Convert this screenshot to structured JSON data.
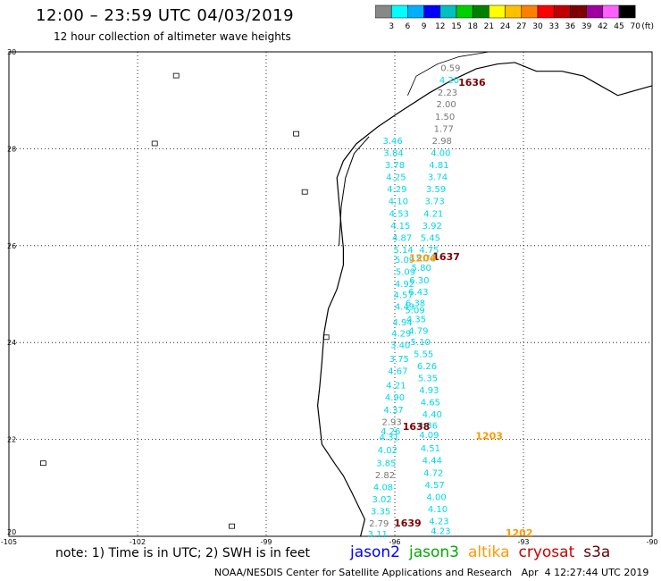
{
  "header": {
    "title": "12:00 – 23:59 UTC 04/03/2019",
    "subtitle": "12 hour collection of altimeter wave heights"
  },
  "scale": {
    "labels": [
      "3",
      "6",
      "9",
      "12",
      "15",
      "18",
      "21",
      "24",
      "27",
      "30",
      "33",
      "36",
      "39",
      "42",
      "45",
      "70"
    ],
    "colors": [
      "#888888",
      "#00ffff",
      "#00b0ff",
      "#0000ff",
      "#00c0c0",
      "#00d000",
      "#008000",
      "#ffff00",
      "#ffc000",
      "#ff8000",
      "#ff0000",
      "#c00000",
      "#800000",
      "#a000a0",
      "#ff60ff",
      "#000000"
    ],
    "unit": "(ft)"
  },
  "axes": {
    "lat_labels": [
      "30",
      "28",
      "26",
      "24",
      "22",
      "20"
    ],
    "lon_labels": [
      "-105",
      "-102",
      "-99",
      "-96",
      "-93",
      "-90"
    ]
  },
  "satellites": [
    {
      "name": "jason2",
      "color": "#0000ff"
    },
    {
      "name": "jason3",
      "color": "#00aa00"
    },
    {
      "name": "altika",
      "color": "#ff9900"
    },
    {
      "name": "cryosat",
      "color": "#cc0000"
    },
    {
      "name": "s3a",
      "color": "#660000"
    }
  ],
  "note": "note: 1) Time is in UTC; 2) SWH is in feet",
  "footer": "NOAA/NESDIS Center for Satellite Applications and Research   Apr  4 12:27:44 UTC 2019",
  "labels": {
    "colors": {
      "gray": "#777777",
      "cyan": "#00d8e8",
      "orange": "#ff9900",
      "darkred": "#7a0000"
    },
    "track_ticks": [
      {
        "t": "1636",
        "c": "darkred",
        "lon": -94.2,
        "lat": 29.3
      },
      {
        "t": "1637",
        "c": "darkred",
        "lon": -94.8,
        "lat": 25.7
      },
      {
        "t": "1204",
        "c": "orange",
        "lon": -95.35,
        "lat": 25.67
      },
      {
        "t": "1638",
        "c": "darkred",
        "lon": -95.5,
        "lat": 22.2
      },
      {
        "t": "1203",
        "c": "orange",
        "lon": -93.8,
        "lat": 22.0
      },
      {
        "t": "1639",
        "c": "darkred",
        "lon": -95.7,
        "lat": 20.2
      },
      {
        "t": "1202",
        "c": "orange",
        "lon": -93.1,
        "lat": 20.0
      }
    ],
    "track_a": [
      {
        "t": "0.59",
        "c": "gray",
        "lon": -94.7,
        "lat": 29.6
      },
      {
        "t": "4.20",
        "c": "cyan",
        "lon": -94.73,
        "lat": 29.35
      },
      {
        "t": "2.23",
        "c": "gray",
        "lon": -94.77,
        "lat": 29.1
      },
      {
        "t": "2.00",
        "c": "gray",
        "lon": -94.8,
        "lat": 28.86
      },
      {
        "t": "1.50",
        "c": "gray",
        "lon": -94.83,
        "lat": 28.6
      },
      {
        "t": "1.77",
        "c": "gray",
        "lon": -94.86,
        "lat": 28.35
      },
      {
        "t": "2.98",
        "c": "gray",
        "lon": -94.9,
        "lat": 28.1
      },
      {
        "t": "4.00",
        "c": "cyan",
        "lon": -94.93,
        "lat": 27.85
      },
      {
        "t": "4.81",
        "c": "cyan",
        "lon": -94.97,
        "lat": 27.6
      },
      {
        "t": "3.74",
        "c": "cyan",
        "lon": -95.0,
        "lat": 27.35
      },
      {
        "t": "3.59",
        "c": "cyan",
        "lon": -95.04,
        "lat": 27.1
      },
      {
        "t": "3.73",
        "c": "cyan",
        "lon": -95.07,
        "lat": 26.85
      },
      {
        "t": "4.21",
        "c": "cyan",
        "lon": -95.1,
        "lat": 26.6
      },
      {
        "t": "3.92",
        "c": "cyan",
        "lon": -95.13,
        "lat": 26.35
      },
      {
        "t": "5.45",
        "c": "cyan",
        "lon": -95.17,
        "lat": 26.1
      },
      {
        "t": "4.75",
        "c": "cyan",
        "lon": -95.2,
        "lat": 25.85
      },
      {
        "t": "5.78",
        "c": "cyan",
        "lon": -95.27,
        "lat": 25.67
      },
      {
        "t": "5.80",
        "c": "cyan",
        "lon": -95.38,
        "lat": 25.48
      },
      {
        "t": "6.30",
        "c": "cyan",
        "lon": -95.43,
        "lat": 25.22
      },
      {
        "t": "6.43",
        "c": "cyan",
        "lon": -95.45,
        "lat": 24.98
      },
      {
        "t": "6.38",
        "c": "cyan",
        "lon": -95.52,
        "lat": 24.75
      },
      {
        "t": "5.09",
        "c": "cyan",
        "lon": -95.53,
        "lat": 24.6
      },
      {
        "t": "4.35",
        "c": "cyan",
        "lon": -95.5,
        "lat": 24.42
      },
      {
        "t": "4.79",
        "c": "cyan",
        "lon": -95.45,
        "lat": 24.18
      },
      {
        "t": "5.10",
        "c": "cyan",
        "lon": -95.4,
        "lat": 23.95
      },
      {
        "t": "5.55",
        "c": "cyan",
        "lon": -95.33,
        "lat": 23.7
      },
      {
        "t": "6.26",
        "c": "cyan",
        "lon": -95.25,
        "lat": 23.45
      },
      {
        "t": "5.35",
        "c": "cyan",
        "lon": -95.23,
        "lat": 23.2
      },
      {
        "t": "4.93",
        "c": "cyan",
        "lon": -95.2,
        "lat": 22.95
      },
      {
        "t": "4.65",
        "c": "cyan",
        "lon": -95.17,
        "lat": 22.7
      },
      {
        "t": "4.40",
        "c": "cyan",
        "lon": -95.13,
        "lat": 22.45
      },
      {
        "t": "4.36",
        "c": "cyan",
        "lon": -95.23,
        "lat": 22.22
      },
      {
        "t": "4.09",
        "c": "cyan",
        "lon": -95.2,
        "lat": 22.03
      },
      {
        "t": "4.51",
        "c": "cyan",
        "lon": -95.17,
        "lat": 21.75
      },
      {
        "t": "4.44",
        "c": "cyan",
        "lon": -95.13,
        "lat": 21.5
      },
      {
        "t": "4.72",
        "c": "cyan",
        "lon": -95.1,
        "lat": 21.25
      },
      {
        "t": "4.57",
        "c": "cyan",
        "lon": -95.07,
        "lat": 21.0
      },
      {
        "t": "4.00",
        "c": "cyan",
        "lon": -95.03,
        "lat": 20.75
      },
      {
        "t": "4.10",
        "c": "cyan",
        "lon": -95.0,
        "lat": 20.5
      },
      {
        "t": "4.23",
        "c": "cyan",
        "lon": -94.97,
        "lat": 20.25
      },
      {
        "t": "4.23",
        "c": "cyan",
        "lon": -94.93,
        "lat": 20.05
      }
    ],
    "track_b": [
      {
        "t": "3.46",
        "c": "cyan",
        "lon": -96.05,
        "lat": 28.1
      },
      {
        "t": "3.84",
        "c": "cyan",
        "lon": -96.03,
        "lat": 27.85
      },
      {
        "t": "3.78",
        "c": "cyan",
        "lon": -96.0,
        "lat": 27.6
      },
      {
        "t": "4.25",
        "c": "cyan",
        "lon": -95.97,
        "lat": 27.35
      },
      {
        "t": "4.29",
        "c": "cyan",
        "lon": -95.95,
        "lat": 27.1
      },
      {
        "t": "4.10",
        "c": "cyan",
        "lon": -95.92,
        "lat": 26.85
      },
      {
        "t": "4.53",
        "c": "cyan",
        "lon": -95.9,
        "lat": 26.6
      },
      {
        "t": "4.15",
        "c": "cyan",
        "lon": -95.87,
        "lat": 26.35
      },
      {
        "t": "4.87",
        "c": "cyan",
        "lon": -95.83,
        "lat": 26.1
      },
      {
        "t": "5.14",
        "c": "cyan",
        "lon": -95.8,
        "lat": 25.85
      },
      {
        "t": "5.09",
        "c": "cyan",
        "lon": -95.77,
        "lat": 25.65
      },
      {
        "t": "5.09",
        "c": "cyan",
        "lon": -95.75,
        "lat": 25.4
      },
      {
        "t": "4.92",
        "c": "cyan",
        "lon": -95.77,
        "lat": 25.15
      },
      {
        "t": "4.57",
        "c": "cyan",
        "lon": -95.8,
        "lat": 24.92
      },
      {
        "t": "4.49",
        "c": "cyan",
        "lon": -95.77,
        "lat": 24.68
      },
      {
        "t": "4.94",
        "c": "cyan",
        "lon": -95.82,
        "lat": 24.35
      },
      {
        "t": "4.29",
        "c": "cyan",
        "lon": -95.85,
        "lat": 24.12
      },
      {
        "t": "3.40",
        "c": "cyan",
        "lon": -95.87,
        "lat": 23.88
      },
      {
        "t": "3.75",
        "c": "cyan",
        "lon": -95.9,
        "lat": 23.6
      },
      {
        "t": "4.67",
        "c": "cyan",
        "lon": -95.93,
        "lat": 23.35
      },
      {
        "t": "4.21",
        "c": "cyan",
        "lon": -95.97,
        "lat": 23.05
      },
      {
        "t": "4.90",
        "c": "cyan",
        "lon": -96.0,
        "lat": 22.8
      },
      {
        "t": "4.37",
        "c": "cyan",
        "lon": -96.03,
        "lat": 22.55
      },
      {
        "t": "2.93",
        "c": "gray",
        "lon": -96.07,
        "lat": 22.3
      },
      {
        "t": "4.26",
        "c": "cyan",
        "lon": -96.1,
        "lat": 22.1
      },
      {
        "t": "4.31",
        "c": "cyan",
        "lon": -96.13,
        "lat": 21.98
      },
      {
        "t": "4.02",
        "c": "cyan",
        "lon": -96.17,
        "lat": 21.72
      },
      {
        "t": "3.85",
        "c": "cyan",
        "lon": -96.2,
        "lat": 21.45
      },
      {
        "t": "2.82",
        "c": "gray",
        "lon": -96.23,
        "lat": 21.2
      },
      {
        "t": "4.08",
        "c": "cyan",
        "lon": -96.27,
        "lat": 20.95
      },
      {
        "t": "3.02",
        "c": "cyan",
        "lon": -96.3,
        "lat": 20.7
      },
      {
        "t": "3.35",
        "c": "cyan",
        "lon": -96.33,
        "lat": 20.45
      },
      {
        "t": "2.79",
        "c": "gray",
        "lon": -96.37,
        "lat": 20.2
      },
      {
        "t": "3.11",
        "c": "cyan",
        "lon": -96.4,
        "lat": 19.98
      }
    ]
  }
}
